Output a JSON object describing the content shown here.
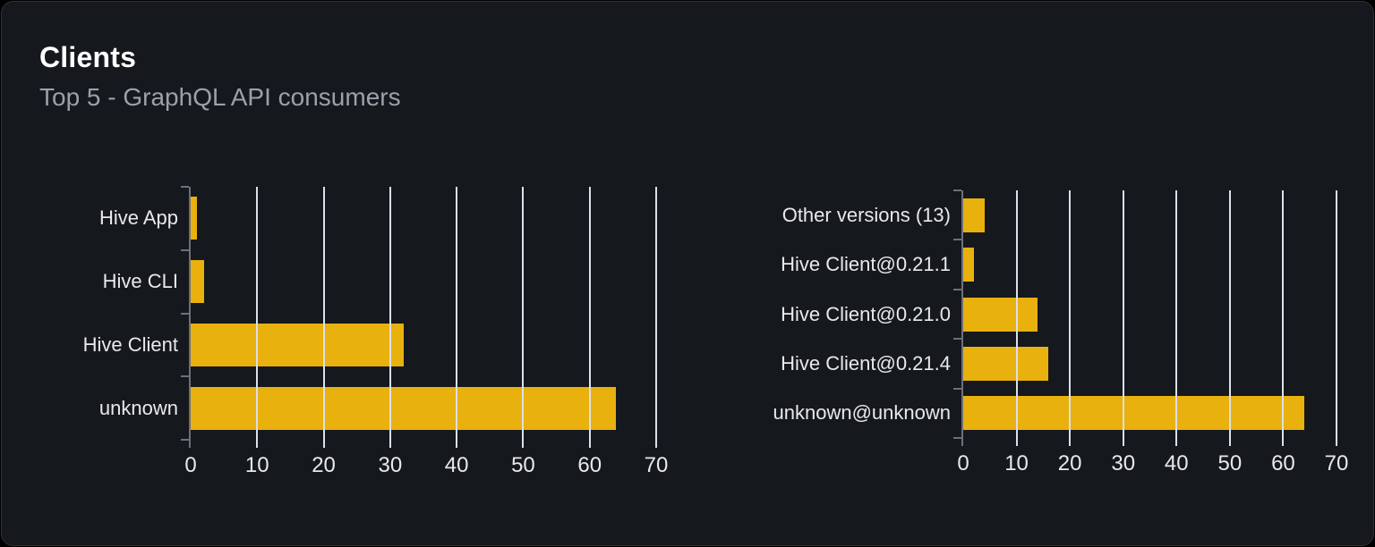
{
  "card": {
    "title": "Clients",
    "subtitle": "Top 5 - GraphQL API consumers"
  },
  "colors": {
    "page_background": "#000000",
    "card_background": "#15181d",
    "card_border": "#2c3138",
    "bar": "#e9b10d",
    "grid_line": "#dce0e9",
    "axis_line": "#6e7079",
    "title_text": "#ffffff",
    "subtitle_text": "#9aa1ab",
    "label_text": "#e7e9ec"
  },
  "chart_data": [
    {
      "type": "bar",
      "orientation": "horizontal",
      "categories": [
        "Hive App",
        "Hive CLI",
        "Hive Client",
        "unknown"
      ],
      "values": [
        1,
        2,
        32,
        64
      ],
      "xlim": [
        0,
        70
      ],
      "x_ticks": [
        0,
        10,
        20,
        30,
        40,
        50,
        60,
        70
      ],
      "grid": true,
      "legend": false
    },
    {
      "type": "bar",
      "orientation": "horizontal",
      "categories": [
        "Other versions (13)",
        "Hive Client@0.21.1",
        "Hive Client@0.21.0",
        "Hive Client@0.21.4",
        "unknown@unknown"
      ],
      "values": [
        4,
        2,
        14,
        16,
        64
      ],
      "xlim": [
        0,
        70
      ],
      "x_ticks": [
        0,
        10,
        20,
        30,
        40,
        50,
        60,
        70
      ],
      "grid": true,
      "legend": false
    }
  ]
}
